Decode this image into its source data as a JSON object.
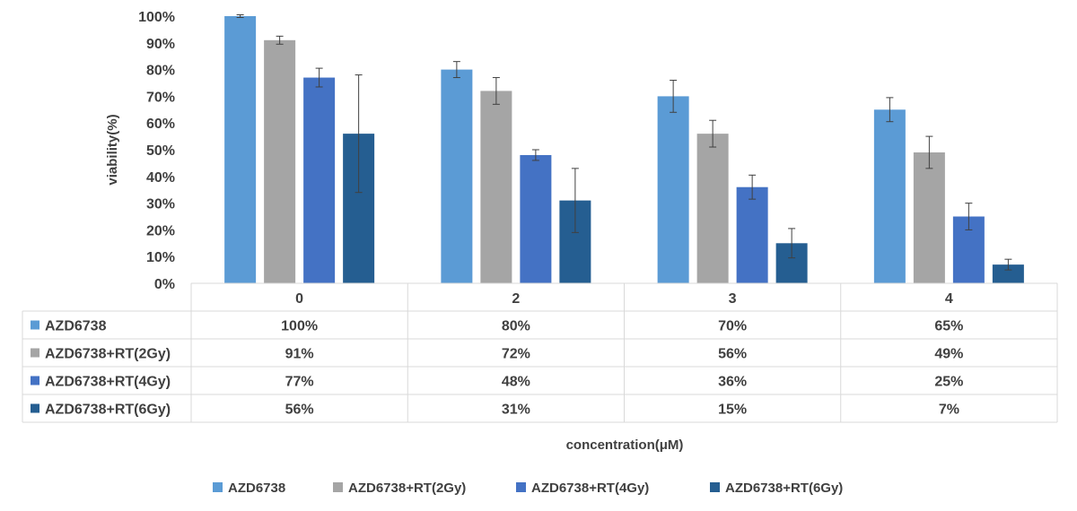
{
  "chart_data": {
    "type": "bar",
    "categories": [
      "0",
      "2",
      "3",
      "4"
    ],
    "series": [
      {
        "name": "AZD6738",
        "values": [
          100,
          80,
          70,
          65
        ],
        "errors": [
          0.5,
          3,
          6,
          4.5
        ],
        "labels": [
          "100%",
          "80%",
          "70%",
          "65%"
        ],
        "color": "#5b9bd5"
      },
      {
        "name": "AZD6738+RT(2Gy)",
        "values": [
          91,
          72,
          56,
          49
        ],
        "errors": [
          1.5,
          5,
          5,
          6
        ],
        "labels": [
          "91%",
          "72%",
          "56%",
          "49%"
        ],
        "color": "#a5a5a5"
      },
      {
        "name": "AZD6738+RT(4Gy)",
        "values": [
          77,
          48,
          36,
          25
        ],
        "errors": [
          3.5,
          2,
          4.5,
          5
        ],
        "labels": [
          "77%",
          "48%",
          "36%",
          "25%"
        ],
        "color": "#4472c4"
      },
      {
        "name": "AZD6738+RT(6Gy)",
        "values": [
          56,
          31,
          15,
          7
        ],
        "errors": [
          22,
          12,
          5.5,
          2
        ],
        "labels": [
          "56%",
          "31%",
          "15%",
          "7%"
        ],
        "color": "#255e91"
      }
    ],
    "yticks": [
      "0%",
      "10%",
      "20%",
      "30%",
      "40%",
      "50%",
      "60%",
      "70%",
      "80%",
      "90%",
      "100%"
    ],
    "ylim": [
      0,
      100
    ],
    "xlabel": "concentration(μM)",
    "ylabel": "viability(%)",
    "grid": false,
    "data_table": true,
    "legend_position": "bottom"
  }
}
